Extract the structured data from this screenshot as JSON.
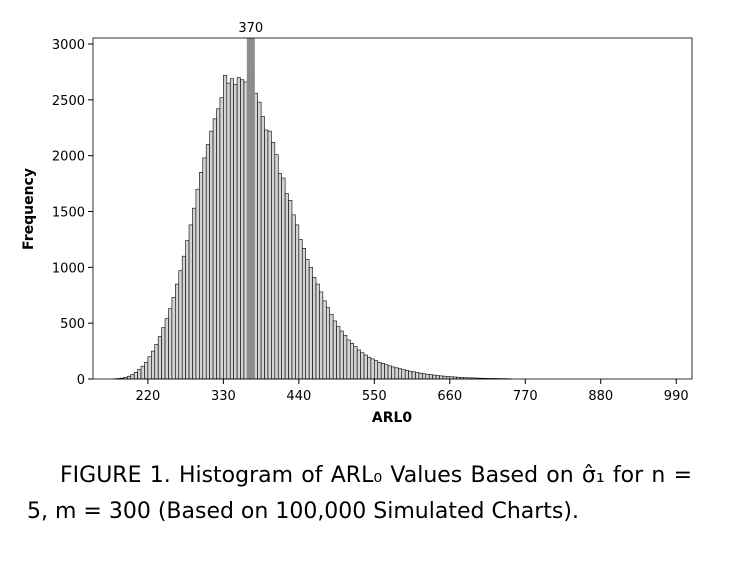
{
  "chart_data": {
    "type": "histogram",
    "xlabel": "ARL0",
    "ylabel": "Frequency",
    "bins": [
      170,
      175,
      180,
      185,
      190,
      195,
      200,
      205,
      210,
      215,
      220,
      225,
      230,
      235,
      240,
      245,
      250,
      255,
      260,
      265,
      270,
      275,
      280,
      285,
      290,
      295,
      300,
      305,
      310,
      315,
      320,
      325,
      330,
      335,
      340,
      345,
      350,
      355,
      360,
      365,
      370,
      375,
      380,
      385,
      390,
      395,
      400,
      405,
      410,
      415,
      420,
      425,
      430,
      435,
      440,
      445,
      450,
      455,
      460,
      465,
      470,
      475,
      480,
      485,
      490,
      495,
      500,
      505,
      510,
      515,
      520,
      525,
      530,
      535,
      540,
      545,
      550,
      555,
      560,
      565,
      570,
      575,
      580,
      585,
      590,
      595,
      600,
      605,
      610,
      615,
      620,
      625,
      630,
      635,
      640,
      645,
      650,
      655,
      660,
      665,
      670,
      675,
      680,
      685,
      690,
      695,
      700,
      705,
      710,
      715,
      720,
      725,
      730,
      735,
      740,
      745,
      750
    ],
    "values": [
      2,
      5,
      8,
      15,
      25,
      40,
      60,
      85,
      115,
      150,
      200,
      250,
      310,
      380,
      460,
      540,
      630,
      730,
      850,
      970,
      1100,
      1240,
      1380,
      1530,
      1700,
      1850,
      1980,
      2100,
      2220,
      2330,
      2420,
      2520,
      2720,
      2650,
      2690,
      2640,
      2700,
      2680,
      2660,
      2750,
      2800,
      2560,
      2480,
      2350,
      2230,
      2220,
      2120,
      2010,
      1840,
      1800,
      1660,
      1600,
      1470,
      1380,
      1250,
      1170,
      1070,
      1000,
      910,
      850,
      780,
      700,
      640,
      580,
      520,
      470,
      430,
      390,
      350,
      320,
      290,
      260,
      235,
      215,
      195,
      180,
      165,
      150,
      140,
      128,
      118,
      108,
      100,
      92,
      84,
      76,
      70,
      64,
      58,
      52,
      47,
      43,
      39,
      35,
      31,
      28,
      25,
      22,
      20,
      18,
      16,
      14,
      12,
      11,
      10,
      9,
      8,
      7,
      6,
      5,
      5,
      4,
      4,
      3,
      3,
      2
    ],
    "color": "#d4d4d4",
    "edge_color": "#000000",
    "reference_line": 370,
    "reference_color": "#8c8c8c",
    "xlim": [
      140,
      1013
    ],
    "ylim": [
      0,
      3054
    ],
    "xticks": [
      220,
      330,
      440,
      550,
      660,
      770,
      880,
      990
    ],
    "yticks": [
      0,
      500,
      1000,
      1500,
      2000,
      2500,
      3000
    ]
  },
  "caption": "FIGURE 1. Histogram of ARL₀ Values Based on σ̂₁ for n = 5, m = 300 (Based on 100,000 Simulated Charts)."
}
